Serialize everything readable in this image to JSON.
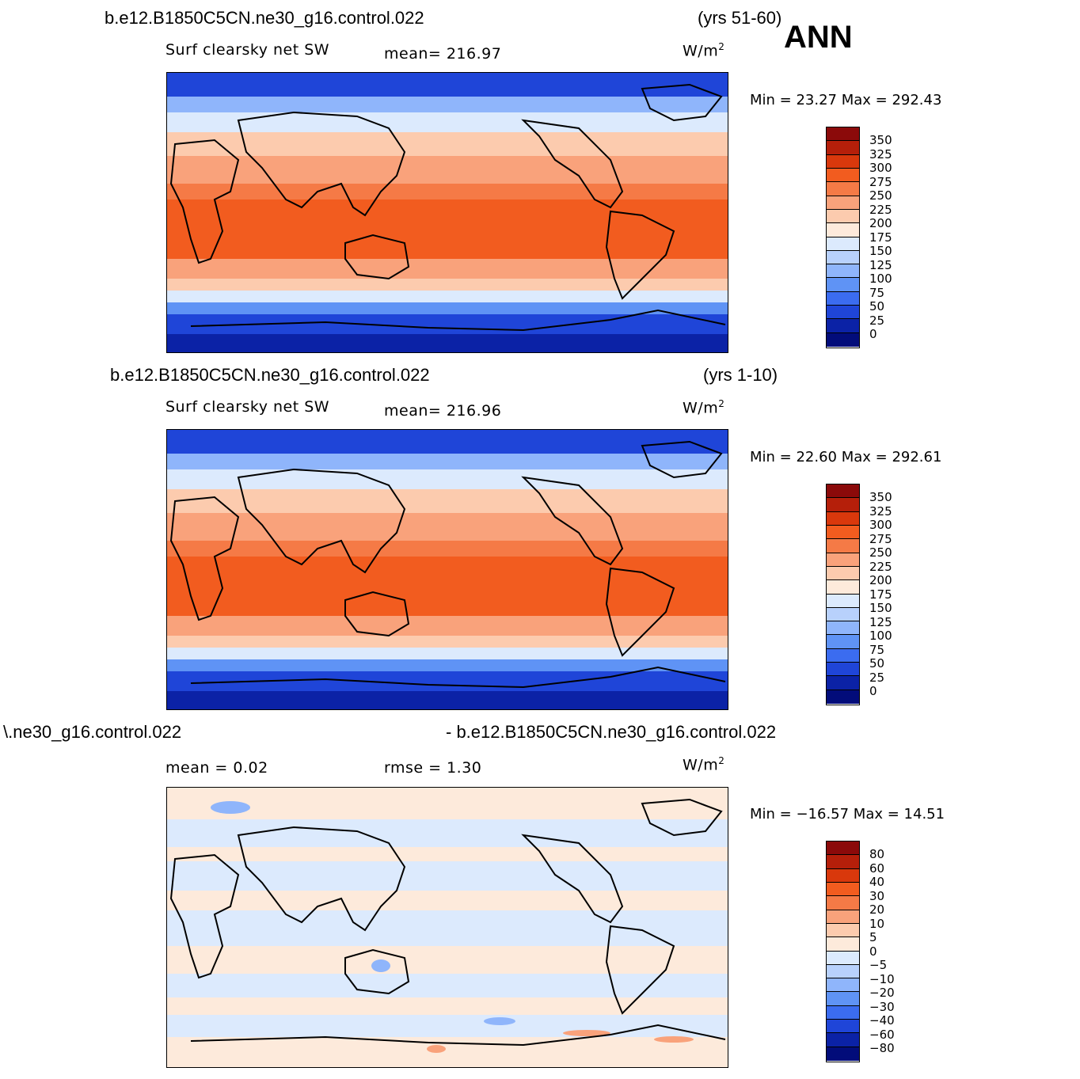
{
  "season": "ANN",
  "panels": [
    {
      "case_title": "b.e12.B1850C5CN.ne30_g16.control.022",
      "years": "(yrs 51-60)",
      "variable": "Surf  clearsky  net  SW",
      "stat1": "mean=  216.97",
      "stat2": "",
      "units": "W/m",
      "units_exp": "2",
      "minmax": "Min =    23.27  Max  =  292.43",
      "colorbar_levels": [
        "350",
        "325",
        "300",
        "275",
        "250",
        "225",
        "200",
        "175",
        "150",
        "125",
        "100",
        "75",
        "50",
        "25",
        "0"
      ],
      "colorbar_colors": [
        "#8b0a0a",
        "#b51f0a",
        "#d9380c",
        "#f25c1f",
        "#f57a46",
        "#f9a27b",
        "#fccbae",
        "#fdeadb",
        "#dceafd",
        "#b8d1fc",
        "#8fb5fb",
        "#5f93f5",
        "#3b6cf0",
        "#1f45d8",
        "#0b22a6",
        "#020c7a"
      ]
    },
    {
      "case_title": "b.e12.B1850C5CN.ne30_g16.control.022",
      "years": "(yrs 1-10)",
      "variable": "Surf  clearsky  net  SW",
      "stat1": "mean=  216.96",
      "stat2": "",
      "units": "W/m",
      "units_exp": "2",
      "minmax": "Min =    22.60  Max  =  292.61",
      "colorbar_levels": [
        "350",
        "325",
        "300",
        "275",
        "250",
        "225",
        "200",
        "175",
        "150",
        "125",
        "100",
        "75",
        "50",
        "25",
        "0"
      ],
      "colorbar_colors": [
        "#8b0a0a",
        "#b51f0a",
        "#d9380c",
        "#f25c1f",
        "#f57a46",
        "#f9a27b",
        "#fccbae",
        "#fdeadb",
        "#dceafd",
        "#b8d1fc",
        "#8fb5fb",
        "#5f93f5",
        "#3b6cf0",
        "#1f45d8",
        "#0b22a6",
        "#020c7a"
      ]
    },
    {
      "case_title_left": "\\.ne30_g16.control.022",
      "case_title_right": "- b.e12.B1850C5CN.ne30_g16.control.022",
      "variable": "",
      "stat1": "mean  =    0.02",
      "stat2": "rmse  =    1.30",
      "units": "W/m",
      "units_exp": "2",
      "minmax": "Min = −16.57  Max  =   14.51",
      "colorbar_levels": [
        "80",
        "60",
        "40",
        "30",
        "20",
        "10",
        "5",
        "0",
        "−5",
        "−10",
        "−20",
        "−30",
        "−40",
        "−60",
        "−80"
      ],
      "colorbar_colors": [
        "#8b0a0a",
        "#b51f0a",
        "#d9380c",
        "#f25c1f",
        "#f57a46",
        "#f9a27b",
        "#fccbae",
        "#fdeadb",
        "#dceafd",
        "#b8d1fc",
        "#8fb5fb",
        "#5f93f5",
        "#3b6cf0",
        "#1f45d8",
        "#0b22a6",
        "#020c7a"
      ]
    }
  ]
}
